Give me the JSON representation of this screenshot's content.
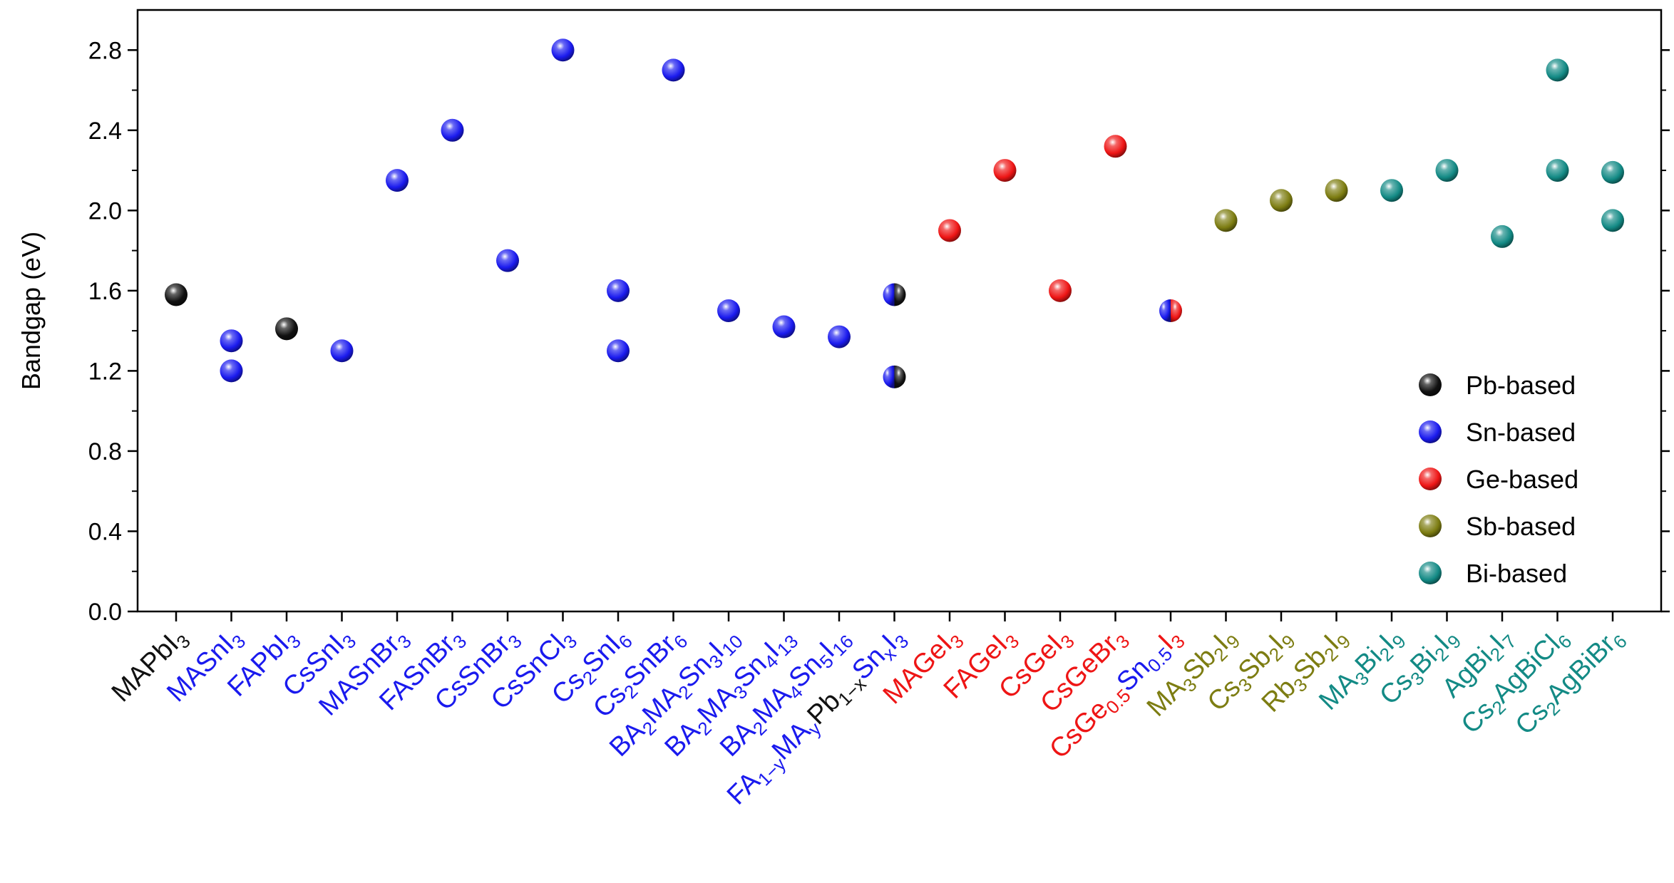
{
  "chart_data": {
    "type": "scatter",
    "ylabel": "Bandgap (eV)",
    "ylim": [
      0,
      3.0
    ],
    "yticks": [
      "0.0",
      "0.4",
      "0.8",
      "1.2",
      "1.6",
      "2.0",
      "2.4",
      "2.8"
    ],
    "grid": false,
    "legend_position": "right",
    "colors": {
      "Pb": "#111111",
      "Sn": "#1a1aee",
      "Ge": "#ee1515",
      "Sb": "#7d7d12",
      "Bi": "#138a85"
    },
    "legend": [
      {
        "key": "Pb",
        "label": "Pb-based"
      },
      {
        "key": "Sn",
        "label": "Sn-based"
      },
      {
        "key": "Ge",
        "label": "Ge-based"
      },
      {
        "key": "Sb",
        "label": "Sb-based"
      },
      {
        "key": "Bi",
        "label": "Bi-based"
      }
    ],
    "categories": [
      {
        "label": "MAPbI3",
        "group": "Pb",
        "parts": [
          [
            "MAPbI",
            ""
          ],
          [
            "3",
            "sub"
          ]
        ],
        "values": [
          1.58
        ]
      },
      {
        "label": "MASnI3",
        "group": "Sn",
        "parts": [
          [
            "MASnI",
            ""
          ],
          [
            "3",
            "sub"
          ]
        ],
        "values": [
          1.35,
          1.2
        ]
      },
      {
        "label": "FAPbI3",
        "group": "Sn",
        "parts": [
          [
            "FAPbI",
            ""
          ],
          [
            "3",
            "sub"
          ]
        ],
        "marker": "Pb",
        "values": [
          1.41
        ]
      },
      {
        "label": "CsSnI3",
        "group": "Sn",
        "parts": [
          [
            "CsSnI",
            ""
          ],
          [
            "3",
            "sub"
          ]
        ],
        "values": [
          1.3
        ]
      },
      {
        "label": "MASnBr3",
        "group": "Sn",
        "parts": [
          [
            "MASnBr",
            ""
          ],
          [
            "3",
            "sub"
          ]
        ],
        "values": [
          2.15
        ]
      },
      {
        "label": "FASnBr3",
        "group": "Sn",
        "parts": [
          [
            "FASnBr",
            ""
          ],
          [
            "3",
            "sub"
          ]
        ],
        "values": [
          2.4
        ]
      },
      {
        "label": "CsSnBr3",
        "group": "Sn",
        "parts": [
          [
            "CsSnBr",
            ""
          ],
          [
            "3",
            "sub"
          ]
        ],
        "values": [
          1.75
        ]
      },
      {
        "label": "CsSnCl3",
        "group": "Sn",
        "parts": [
          [
            "CsSnCl",
            ""
          ],
          [
            "3",
            "sub"
          ]
        ],
        "values": [
          2.8
        ]
      },
      {
        "label": "Cs2SnI6",
        "group": "Sn",
        "parts": [
          [
            "Cs",
            ""
          ],
          [
            "2",
            "sub"
          ],
          [
            "SnI",
            ""
          ],
          [
            "6",
            "sub"
          ]
        ],
        "values": [
          1.6,
          1.3
        ]
      },
      {
        "label": "Cs2SnBr6",
        "group": "Sn",
        "parts": [
          [
            "Cs",
            ""
          ],
          [
            "2",
            "sub"
          ],
          [
            "SnBr",
            ""
          ],
          [
            "6",
            "sub"
          ]
        ],
        "values": [
          2.7
        ]
      },
      {
        "label": "BA2MA2Sn3I10",
        "group": "Sn",
        "parts": [
          [
            "BA",
            ""
          ],
          [
            "2",
            "sub"
          ],
          [
            "MA",
            ""
          ],
          [
            "2",
            "sub"
          ],
          [
            "Sn",
            ""
          ],
          [
            "3",
            "sub"
          ],
          [
            "I",
            ""
          ],
          [
            "10",
            "sub"
          ]
        ],
        "values": [
          1.5
        ]
      },
      {
        "label": "BA2MA3Sn4I13",
        "group": "Sn",
        "parts": [
          [
            "BA",
            ""
          ],
          [
            "2",
            "sub"
          ],
          [
            "MA",
            ""
          ],
          [
            "3",
            "sub"
          ],
          [
            "Sn",
            ""
          ],
          [
            "4",
            "sub"
          ],
          [
            "I",
            ""
          ],
          [
            "13",
            "sub"
          ]
        ],
        "values": [
          1.42
        ]
      },
      {
        "label": "BA2MA4Sn5I16",
        "group": "Sn",
        "parts": [
          [
            "BA",
            ""
          ],
          [
            "2",
            "sub"
          ],
          [
            "MA",
            ""
          ],
          [
            "4",
            "sub"
          ],
          [
            "Sn",
            ""
          ],
          [
            "5",
            "sub"
          ],
          [
            "I",
            ""
          ],
          [
            "16",
            "sub"
          ]
        ],
        "values": [
          1.37
        ]
      },
      {
        "label": "FA1−yMAyPb1−xSnxI3",
        "group": "Sn",
        "marker": "Sn|Pb",
        "parts": [
          [
            "FA",
            ""
          ],
          [
            "1−y",
            "sub"
          ],
          [
            "MA",
            ""
          ],
          [
            "y",
            "sub"
          ],
          [
            "Pb",
            "Pb"
          ],
          [
            "1−x",
            "subPb"
          ],
          [
            "Sn",
            ""
          ],
          [
            "x",
            "sub"
          ],
          [
            "I",
            ""
          ],
          [
            "3",
            "sub"
          ]
        ],
        "values": [
          1.58,
          1.17
        ]
      },
      {
        "label": "MAGeI3",
        "group": "Ge",
        "parts": [
          [
            "MAGeI",
            ""
          ],
          [
            "3",
            "sub"
          ]
        ],
        "values": [
          1.9
        ]
      },
      {
        "label": "FAGeI3",
        "group": "Ge",
        "parts": [
          [
            "FAGeI",
            ""
          ],
          [
            "3",
            "sub"
          ]
        ],
        "values": [
          2.2
        ]
      },
      {
        "label": "CsGeI3",
        "group": "Ge",
        "parts": [
          [
            "CsGeI",
            ""
          ],
          [
            "3",
            "sub"
          ]
        ],
        "values": [
          1.6
        ]
      },
      {
        "label": "CsGeBr3",
        "group": "Ge",
        "parts": [
          [
            "CsGeBr",
            ""
          ],
          [
            "3",
            "sub"
          ]
        ],
        "values": [
          2.32
        ]
      },
      {
        "label": "CsGe0.5Sn0.5I3",
        "group": "Ge",
        "marker": "Sn|Ge",
        "parts": [
          [
            "CsGe",
            ""
          ],
          [
            "0.5",
            "sub"
          ],
          [
            "Sn",
            "Sn"
          ],
          [
            "0.5",
            "subSn"
          ],
          [
            "I",
            ""
          ],
          [
            "3",
            "sub"
          ]
        ],
        "values": [
          1.5
        ]
      },
      {
        "label": "MA3Sb2I9",
        "group": "Sb",
        "parts": [
          [
            "MA",
            ""
          ],
          [
            "3",
            "sub"
          ],
          [
            "Sb",
            ""
          ],
          [
            "2",
            "sub"
          ],
          [
            "I",
            ""
          ],
          [
            "9",
            "sub"
          ]
        ],
        "values": [
          1.95
        ]
      },
      {
        "label": "Cs3Sb2I9",
        "group": "Sb",
        "parts": [
          [
            "Cs",
            ""
          ],
          [
            "3",
            "sub"
          ],
          [
            "Sb",
            ""
          ],
          [
            "2",
            "sub"
          ],
          [
            "I",
            ""
          ],
          [
            "9",
            "sub"
          ]
        ],
        "values": [
          2.05
        ]
      },
      {
        "label": "Rb3Sb2I9",
        "group": "Sb",
        "parts": [
          [
            "Rb",
            ""
          ],
          [
            "3",
            "sub"
          ],
          [
            "Sb",
            ""
          ],
          [
            "2",
            "sub"
          ],
          [
            "I",
            ""
          ],
          [
            "9",
            "sub"
          ]
        ],
        "values": [
          2.1
        ]
      },
      {
        "label": "MA3Bi2I9",
        "group": "Bi",
        "parts": [
          [
            "MA",
            ""
          ],
          [
            "3",
            "sub"
          ],
          [
            "Bi",
            ""
          ],
          [
            "2",
            "sub"
          ],
          [
            "I",
            ""
          ],
          [
            "9",
            "sub"
          ]
        ],
        "values": [
          2.1
        ]
      },
      {
        "label": "Cs3Bi2I9",
        "group": "Bi",
        "parts": [
          [
            "Cs",
            ""
          ],
          [
            "3",
            "sub"
          ],
          [
            "Bi",
            ""
          ],
          [
            "2",
            "sub"
          ],
          [
            "I",
            ""
          ],
          [
            "9",
            "sub"
          ]
        ],
        "values": [
          2.2
        ]
      },
      {
        "label": "AgBi2I7",
        "group": "Bi",
        "parts": [
          [
            "AgBi",
            ""
          ],
          [
            "2",
            "sub"
          ],
          [
            "I",
            ""
          ],
          [
            "7",
            "sub"
          ]
        ],
        "values": [
          1.87
        ]
      },
      {
        "label": "Cs2AgBiCl6",
        "group": "Bi",
        "parts": [
          [
            "Cs",
            ""
          ],
          [
            "2",
            "sub"
          ],
          [
            "AgBiCl",
            ""
          ],
          [
            "6",
            "sub"
          ]
        ],
        "values": [
          2.7,
          2.2
        ]
      },
      {
        "label": "Cs2AgBiBr6",
        "group": "Bi",
        "parts": [
          [
            "Cs",
            ""
          ],
          [
            "2",
            "sub"
          ],
          [
            "AgBiBr",
            ""
          ],
          [
            "6",
            "sub"
          ]
        ],
        "values": [
          2.19,
          1.95
        ]
      }
    ]
  }
}
